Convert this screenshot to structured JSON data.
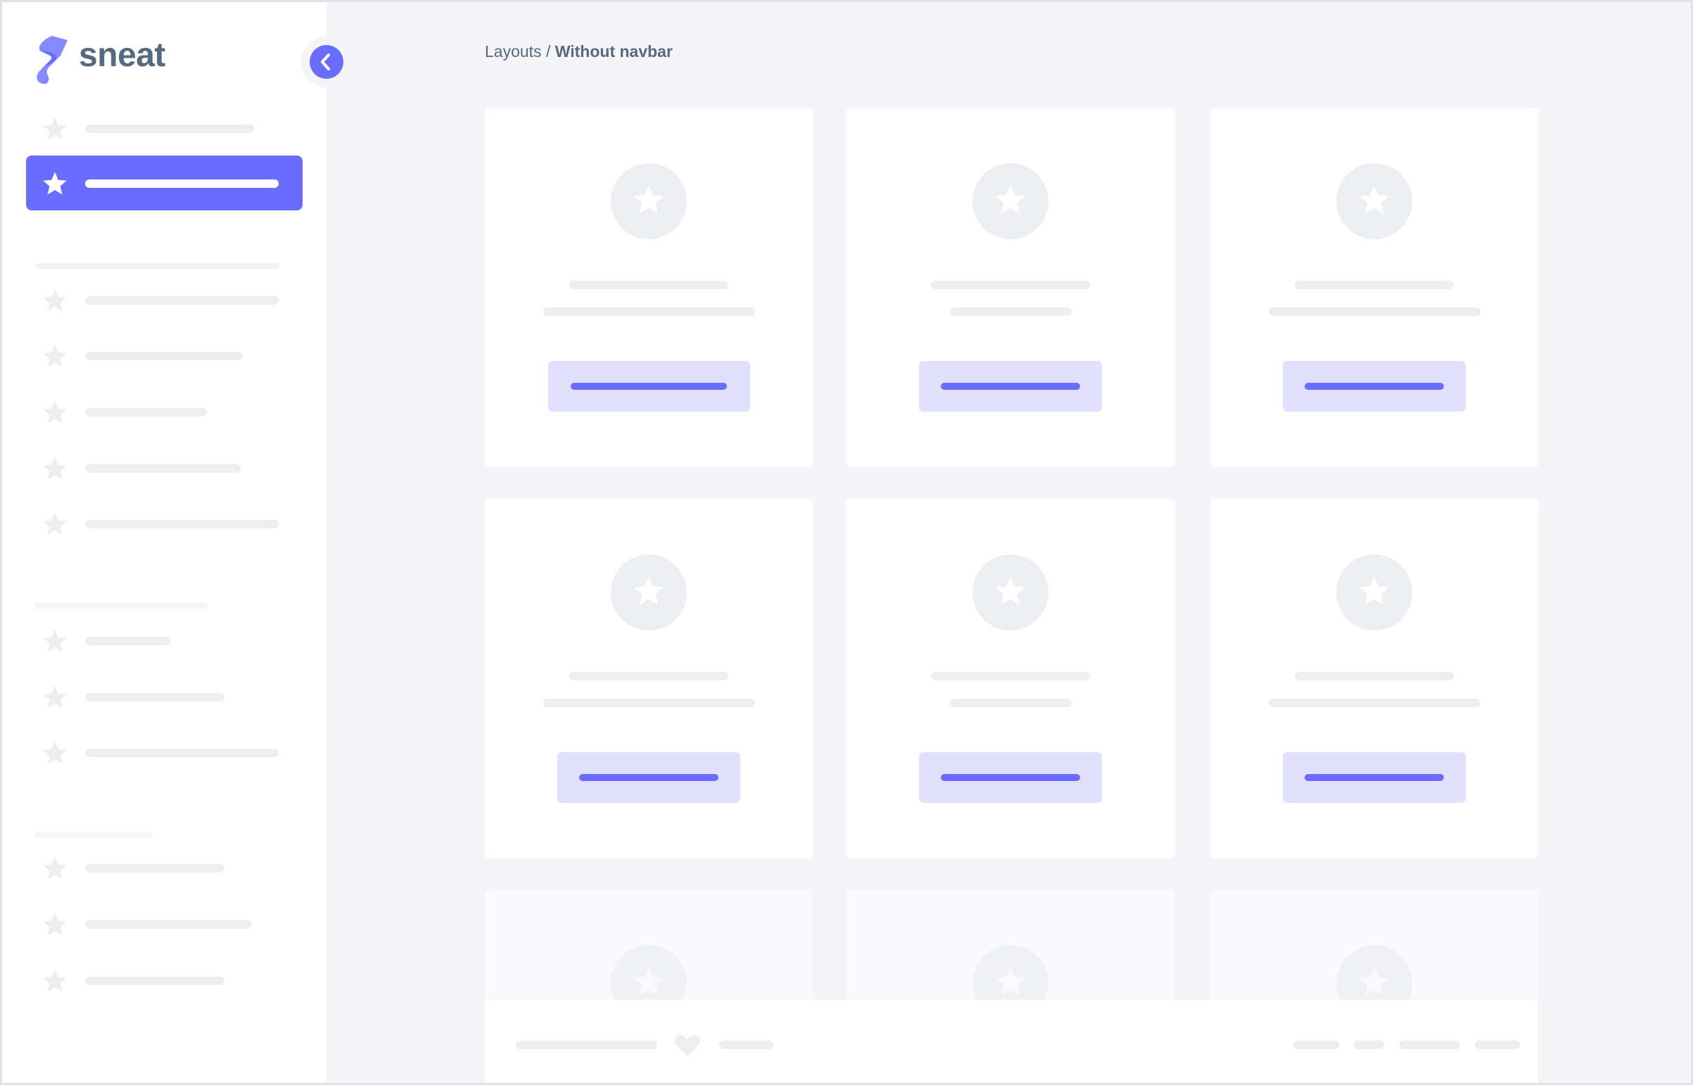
{
  "brand": {
    "name": "sneat",
    "icon": "sneat-logo"
  },
  "collapse_button": {
    "icon": "chevron-left-icon"
  },
  "breadcrumb": {
    "parent": "Layouts",
    "separator": " / ",
    "current": "Without navbar"
  },
  "sidebar": {
    "item_icon": "star-icon",
    "active_index": 1
  },
  "footer": {
    "icon": "heart-icon"
  },
  "colors": {
    "primary": "#696cff",
    "primary_light": "#e1e1fe",
    "text": "#566a7f",
    "background": "#f4f4f9",
    "skeleton": "#edeef2"
  }
}
